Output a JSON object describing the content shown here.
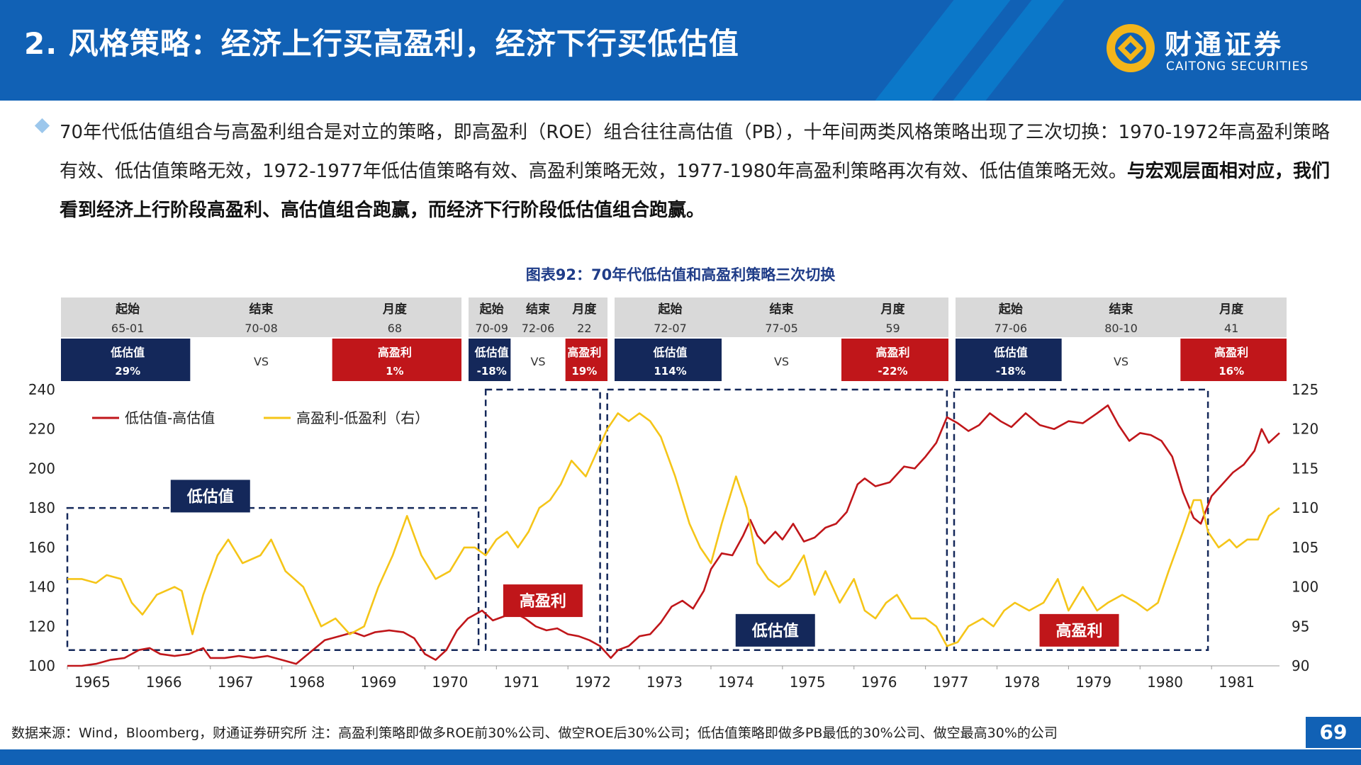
{
  "header": {
    "title": "2. 风格策略：经济上行买高盈利，经济下行买低估值",
    "logo_cn": "财通证券",
    "logo_en": "CAITONG SECURITIES",
    "bg_color": "#1161b5"
  },
  "bullet": {
    "text_normal": "70年代低估值组合与高盈利组合是对立的策略，即高盈利（ROE）组合往往高估值（PB），十年间两类风格策略出现了三次切换：1970-1972年高盈利策略有效、低估值策略无效，1972-1977年低估值策略有效、高盈利策略无效，1977-1980年高盈利策略再次有效、低估值策略无效。",
    "text_bold": "与宏观层面相对应，我们看到经济上行阶段高盈利、高估值组合跑赢，而经济下行阶段低估值组合跑赢。"
  },
  "chart_title": "图表92：70年代低估值和高盈利策略三次切换",
  "footer_note": "数据来源：Wind，Bloomberg，财通证券研究所 注：高盈利策略即做多ROE前30%公司、做空ROE后30%公司；低估值策略即做多PB最低的30%公司、做空最高30%的公司",
  "page_number": "69",
  "chart_data": {
    "type": "line",
    "x_labels": [
      "1965",
      "1966",
      "1967",
      "1968",
      "1969",
      "1970",
      "1971",
      "1972",
      "1973",
      "1974",
      "1975",
      "1976",
      "1977",
      "1978",
      "1979",
      "1980",
      "1981"
    ],
    "x_range": [
      1965.0,
      1981.95
    ],
    "y_left": {
      "range": [
        100,
        240
      ],
      "ticks": [
        100,
        120,
        140,
        160,
        180,
        200,
        220,
        240
      ]
    },
    "y_right": {
      "range": [
        90,
        125
      ],
      "ticks": [
        90,
        95,
        100,
        105,
        110,
        115,
        120,
        125
      ]
    },
    "legend_position": "top-left",
    "colors": {
      "red": "#c0161a",
      "yellow": "#f5c518",
      "navy": "#14285a",
      "dark_red": "#c0161a",
      "header_grey": "#d9d9d9",
      "dash": "#14285a"
    },
    "series": [
      {
        "name": "低估值-高估值",
        "axis": "left",
        "color": "#c0161a",
        "points": [
          [
            1965.0,
            100
          ],
          [
            1965.2,
            100
          ],
          [
            1965.4,
            101
          ],
          [
            1965.6,
            103
          ],
          [
            1965.8,
            104
          ],
          [
            1966.0,
            108
          ],
          [
            1966.15,
            109
          ],
          [
            1966.3,
            106
          ],
          [
            1966.5,
            105
          ],
          [
            1966.7,
            106
          ],
          [
            1966.9,
            109
          ],
          [
            1967.0,
            104
          ],
          [
            1967.2,
            104
          ],
          [
            1967.4,
            105
          ],
          [
            1967.6,
            104
          ],
          [
            1967.8,
            105
          ],
          [
            1968.0,
            103
          ],
          [
            1968.2,
            101
          ],
          [
            1968.4,
            107
          ],
          [
            1968.6,
            113
          ],
          [
            1968.8,
            115
          ],
          [
            1969.0,
            117
          ],
          [
            1969.15,
            115
          ],
          [
            1969.3,
            117
          ],
          [
            1969.5,
            118
          ],
          [
            1969.7,
            117
          ],
          [
            1969.85,
            114
          ],
          [
            1970.0,
            106
          ],
          [
            1970.15,
            103
          ],
          [
            1970.3,
            108
          ],
          [
            1970.45,
            118
          ],
          [
            1970.6,
            124
          ],
          [
            1970.8,
            128
          ],
          [
            1970.95,
            123
          ],
          [
            1971.1,
            125
          ],
          [
            1971.25,
            127
          ],
          [
            1971.4,
            124
          ],
          [
            1971.55,
            120
          ],
          [
            1971.7,
            118
          ],
          [
            1971.85,
            119
          ],
          [
            1972.0,
            116
          ],
          [
            1972.15,
            115
          ],
          [
            1972.3,
            113
          ],
          [
            1972.45,
            110
          ],
          [
            1972.6,
            104
          ],
          [
            1972.7,
            108
          ],
          [
            1972.85,
            110
          ],
          [
            1973.0,
            115
          ],
          [
            1973.15,
            116
          ],
          [
            1973.3,
            122
          ],
          [
            1973.45,
            130
          ],
          [
            1973.6,
            133
          ],
          [
            1973.75,
            129
          ],
          [
            1973.9,
            138
          ],
          [
            1974.0,
            149
          ],
          [
            1974.15,
            157
          ],
          [
            1974.3,
            156
          ],
          [
            1974.45,
            166
          ],
          [
            1974.55,
            174
          ],
          [
            1974.65,
            166
          ],
          [
            1974.75,
            162
          ],
          [
            1974.9,
            168
          ],
          [
            1975.0,
            164
          ],
          [
            1975.15,
            172
          ],
          [
            1975.3,
            163
          ],
          [
            1975.45,
            165
          ],
          [
            1975.6,
            170
          ],
          [
            1975.75,
            172
          ],
          [
            1975.9,
            178
          ],
          [
            1976.05,
            192
          ],
          [
            1976.15,
            195
          ],
          [
            1976.3,
            191
          ],
          [
            1976.5,
            193
          ],
          [
            1976.7,
            201
          ],
          [
            1976.85,
            200
          ],
          [
            1977.0,
            206
          ],
          [
            1977.15,
            213
          ],
          [
            1977.3,
            226
          ],
          [
            1977.45,
            223
          ],
          [
            1977.6,
            219
          ],
          [
            1977.75,
            222
          ],
          [
            1977.9,
            228
          ],
          [
            1978.05,
            224
          ],
          [
            1978.2,
            221
          ],
          [
            1978.4,
            228
          ],
          [
            1978.6,
            222
          ],
          [
            1978.8,
            220
          ],
          [
            1979.0,
            224
          ],
          [
            1979.2,
            223
          ],
          [
            1979.4,
            228
          ],
          [
            1979.55,
            232
          ],
          [
            1979.7,
            222
          ],
          [
            1979.85,
            214
          ],
          [
            1980.0,
            218
          ],
          [
            1980.15,
            217
          ],
          [
            1980.3,
            214
          ],
          [
            1980.45,
            206
          ],
          [
            1980.6,
            188
          ],
          [
            1980.75,
            175
          ],
          [
            1980.85,
            172
          ],
          [
            1981.0,
            186
          ],
          [
            1981.15,
            192
          ],
          [
            1981.3,
            198
          ],
          [
            1981.45,
            202
          ],
          [
            1981.6,
            209
          ],
          [
            1981.7,
            220
          ],
          [
            1981.8,
            213
          ],
          [
            1981.95,
            218
          ]
        ]
      },
      {
        "name": "高盈利-低盈利（右）",
        "axis": "right",
        "color": "#f5c518",
        "points": [
          [
            1965.0,
            101
          ],
          [
            1965.2,
            101
          ],
          [
            1965.4,
            100.5
          ],
          [
            1965.55,
            101.5
          ],
          [
            1965.75,
            101
          ],
          [
            1965.9,
            98
          ],
          [
            1966.05,
            96.5
          ],
          [
            1966.25,
            99
          ],
          [
            1966.5,
            100
          ],
          [
            1966.6,
            99.5
          ],
          [
            1966.75,
            94
          ],
          [
            1966.9,
            99
          ],
          [
            1967.1,
            104
          ],
          [
            1967.25,
            106
          ],
          [
            1967.45,
            103
          ],
          [
            1967.7,
            104
          ],
          [
            1967.85,
            106
          ],
          [
            1968.05,
            102
          ],
          [
            1968.3,
            100
          ],
          [
            1968.55,
            95
          ],
          [
            1968.75,
            96
          ],
          [
            1968.95,
            94
          ],
          [
            1969.15,
            95
          ],
          [
            1969.35,
            100
          ],
          [
            1969.55,
            104
          ],
          [
            1969.75,
            109
          ],
          [
            1969.95,
            104
          ],
          [
            1970.15,
            101
          ],
          [
            1970.35,
            102
          ],
          [
            1970.55,
            105
          ],
          [
            1970.7,
            105
          ],
          [
            1970.85,
            104
          ],
          [
            1971.0,
            106
          ],
          [
            1971.15,
            107
          ],
          [
            1971.3,
            105
          ],
          [
            1971.45,
            107
          ],
          [
            1971.6,
            110
          ],
          [
            1971.75,
            111
          ],
          [
            1971.9,
            113
          ],
          [
            1972.05,
            116
          ],
          [
            1972.25,
            114
          ],
          [
            1972.4,
            117
          ],
          [
            1972.55,
            120
          ],
          [
            1972.7,
            122
          ],
          [
            1972.85,
            121
          ],
          [
            1973.0,
            122
          ],
          [
            1973.15,
            121
          ],
          [
            1973.3,
            119
          ],
          [
            1973.5,
            114
          ],
          [
            1973.7,
            108
          ],
          [
            1973.85,
            105
          ],
          [
            1974.0,
            103
          ],
          [
            1974.15,
            108
          ],
          [
            1974.35,
            114
          ],
          [
            1974.5,
            110
          ],
          [
            1974.65,
            103
          ],
          [
            1974.8,
            101
          ],
          [
            1974.95,
            100
          ],
          [
            1975.1,
            101
          ],
          [
            1975.3,
            104
          ],
          [
            1975.45,
            99
          ],
          [
            1975.6,
            102
          ],
          [
            1975.8,
            98
          ],
          [
            1976.0,
            101
          ],
          [
            1976.15,
            97
          ],
          [
            1976.3,
            96
          ],
          [
            1976.45,
            98
          ],
          [
            1976.6,
            99
          ],
          [
            1976.8,
            96
          ],
          [
            1977.0,
            96
          ],
          [
            1977.15,
            95
          ],
          [
            1977.3,
            92.5
          ],
          [
            1977.45,
            93
          ],
          [
            1977.6,
            95
          ],
          [
            1977.8,
            96
          ],
          [
            1977.95,
            95
          ],
          [
            1978.1,
            97
          ],
          [
            1978.25,
            98
          ],
          [
            1978.45,
            97
          ],
          [
            1978.65,
            98
          ],
          [
            1978.85,
            101
          ],
          [
            1979.0,
            97
          ],
          [
            1979.2,
            100
          ],
          [
            1979.4,
            97
          ],
          [
            1979.55,
            98
          ],
          [
            1979.75,
            99
          ],
          [
            1979.95,
            98
          ],
          [
            1980.1,
            97
          ],
          [
            1980.25,
            98
          ],
          [
            1980.4,
            102
          ],
          [
            1980.6,
            107
          ],
          [
            1980.75,
            111
          ],
          [
            1980.85,
            111
          ],
          [
            1980.95,
            107
          ],
          [
            1981.1,
            105
          ],
          [
            1981.25,
            106
          ],
          [
            1981.35,
            105
          ],
          [
            1981.5,
            106
          ],
          [
            1981.65,
            106
          ],
          [
            1981.8,
            109
          ],
          [
            1981.95,
            110
          ]
        ]
      }
    ],
    "periods": [
      {
        "start": "65-01",
        "end": "70-08",
        "months": "68",
        "low_label": "低估值",
        "low_value": "29%",
        "vs": "VS",
        "high_label": "高盈利",
        "high_value": "1%",
        "box_x": [
          1965.0,
          1970.75
        ],
        "box_y": [
          92,
          180
        ],
        "tag": "低估值",
        "tag_kind": "navy",
        "tag_pos": [
          1967.0,
          186
        ]
      },
      {
        "start": "70-09",
        "end": "72-06",
        "months": "22",
        "low_label": "低估值",
        "low_value": "-18%",
        "vs": "VS",
        "high_label": "高盈利",
        "high_value": "19%",
        "box_x": [
          1970.85,
          1972.45
        ],
        "box_y": [
          92,
          240
        ],
        "tag": "高盈利",
        "tag_kind": "red",
        "tag_pos": [
          1971.65,
          133
        ]
      },
      {
        "start": "72-07",
        "end": "77-05",
        "months": "59",
        "low_label": "低估值",
        "low_value": "114%",
        "vs": "VS",
        "high_label": "高盈利",
        "high_value": "-22%",
        "box_x": [
          1972.55,
          1977.3
        ],
        "box_y": [
          92,
          240
        ],
        "tag": "低估值",
        "tag_kind": "navy",
        "tag_pos": [
          1974.9,
          118
        ]
      },
      {
        "start": "77-06",
        "end": "80-10",
        "months": "41",
        "low_label": "低估值",
        "low_value": "-18%",
        "vs": "VS",
        "high_label": "高盈利",
        "high_value": "16%",
        "box_x": [
          1977.4,
          1980.95
        ],
        "box_y": [
          92,
          240
        ],
        "tag": "高盈利",
        "tag_kind": "red",
        "tag_pos": [
          1979.15,
          118
        ]
      }
    ],
    "table_header": {
      "start": "起始",
      "end": "结束",
      "months": "月度"
    }
  }
}
